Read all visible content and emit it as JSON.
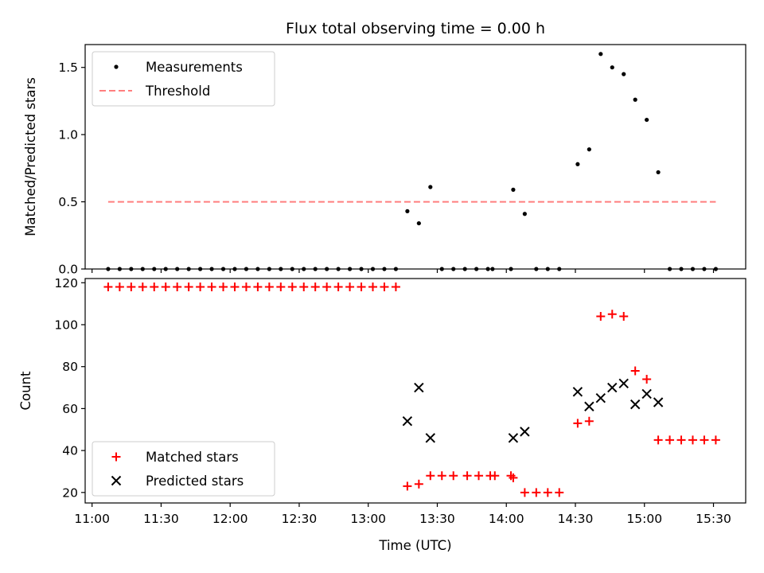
{
  "chart_data": {
    "type": "scatter",
    "title": "Flux total observing time = 0.00 h",
    "xlabel": "Time (UTC)",
    "x_tick_labels": [
      "11:00",
      "11:30",
      "12:00",
      "12:30",
      "13:00",
      "13:30",
      "14:00",
      "14:30",
      "15:00",
      "15:30"
    ],
    "xlim": [
      "10:57",
      "15:44"
    ],
    "panels": [
      {
        "id": "ratio",
        "ylabel": "Matched/Predicted stars",
        "ylim": [
          0,
          1.67
        ],
        "yticks": [
          0.0,
          0.5,
          1.0,
          1.5
        ],
        "y_tick_labels": [
          "0.0",
          "0.5",
          "1.0",
          "1.5"
        ],
        "legend_position": "upper-left",
        "series": [
          {
            "name": "Measurements",
            "marker": "dot",
            "color": "#000000",
            "points": [
              [
                "11:07",
                0
              ],
              [
                "11:12",
                0
              ],
              [
                "11:17",
                0
              ],
              [
                "11:22",
                0
              ],
              [
                "11:27",
                0
              ],
              [
                "11:32",
                0
              ],
              [
                "11:37",
                0
              ],
              [
                "11:42",
                0
              ],
              [
                "11:47",
                0
              ],
              [
                "11:52",
                0
              ],
              [
                "11:57",
                0
              ],
              [
                "12:02",
                0
              ],
              [
                "12:07",
                0
              ],
              [
                "12:12",
                0
              ],
              [
                "12:17",
                0
              ],
              [
                "12:22",
                0
              ],
              [
                "12:27",
                0
              ],
              [
                "12:32",
                0
              ],
              [
                "12:37",
                0
              ],
              [
                "12:42",
                0
              ],
              [
                "12:47",
                0
              ],
              [
                "12:52",
                0
              ],
              [
                "12:57",
                0
              ],
              [
                "13:02",
                0
              ],
              [
                "13:07",
                0
              ],
              [
                "13:12",
                0
              ],
              [
                "13:17",
                0.43
              ],
              [
                "13:22",
                0.34
              ],
              [
                "13:27",
                0.61
              ],
              [
                "13:32",
                0
              ],
              [
                "13:37",
                0
              ],
              [
                "13:42",
                0
              ],
              [
                "13:47",
                0
              ],
              [
                "13:52",
                0
              ],
              [
                "13:54",
                0
              ],
              [
                "14:02",
                0
              ],
              [
                "14:03",
                0.59
              ],
              [
                "14:08",
                0.41
              ],
              [
                "14:13",
                0
              ],
              [
                "14:18",
                0
              ],
              [
                "14:23",
                0
              ],
              [
                "14:31",
                0.78
              ],
              [
                "14:36",
                0.89
              ],
              [
                "14:41",
                1.6
              ],
              [
                "14:46",
                1.5
              ],
              [
                "14:51",
                1.45
              ],
              [
                "14:56",
                1.26
              ],
              [
                "15:01",
                1.11
              ],
              [
                "15:06",
                0.72
              ],
              [
                "15:11",
                0
              ],
              [
                "15:16",
                0
              ],
              [
                "15:21",
                0
              ],
              [
                "15:26",
                0
              ],
              [
                "15:31",
                0
              ]
            ]
          },
          {
            "name": "Threshold",
            "marker": "dashed-line",
            "color": "#ff7f7f",
            "points": [
              [
                "11:07",
                0.5
              ],
              [
                "15:31",
                0.5
              ]
            ]
          }
        ]
      },
      {
        "id": "count",
        "ylabel": "Count",
        "ylim": [
          15,
          122
        ],
        "yticks": [
          20,
          40,
          60,
          80,
          100,
          120
        ],
        "y_tick_labels": [
          "20",
          "40",
          "60",
          "80",
          "100",
          "120"
        ],
        "legend_position": "lower-left",
        "series": [
          {
            "name": "Matched stars",
            "marker": "plus",
            "color": "#ff0000",
            "points": [
              [
                "11:07",
                118
              ],
              [
                "11:12",
                118
              ],
              [
                "11:17",
                118
              ],
              [
                "11:22",
                118
              ],
              [
                "11:27",
                118
              ],
              [
                "11:32",
                118
              ],
              [
                "11:37",
                118
              ],
              [
                "11:42",
                118
              ],
              [
                "11:47",
                118
              ],
              [
                "11:52",
                118
              ],
              [
                "11:57",
                118
              ],
              [
                "12:02",
                118
              ],
              [
                "12:07",
                118
              ],
              [
                "12:12",
                118
              ],
              [
                "12:17",
                118
              ],
              [
                "12:22",
                118
              ],
              [
                "12:27",
                118
              ],
              [
                "12:32",
                118
              ],
              [
                "12:37",
                118
              ],
              [
                "12:42",
                118
              ],
              [
                "12:47",
                118
              ],
              [
                "12:52",
                118
              ],
              [
                "12:57",
                118
              ],
              [
                "13:02",
                118
              ],
              [
                "13:07",
                118
              ],
              [
                "13:12",
                118
              ],
              [
                "13:17",
                23
              ],
              [
                "13:22",
                24
              ],
              [
                "13:27",
                28
              ],
              [
                "13:32",
                28
              ],
              [
                "13:37",
                28
              ],
              [
                "13:43",
                28
              ],
              [
                "13:48",
                28
              ],
              [
                "13:53",
                28
              ],
              [
                "13:55",
                28
              ],
              [
                "14:02",
                28
              ],
              [
                "14:03",
                27
              ],
              [
                "14:08",
                20
              ],
              [
                "14:13",
                20
              ],
              [
                "14:18",
                20
              ],
              [
                "14:23",
                20
              ],
              [
                "14:31",
                53
              ],
              [
                "14:36",
                54
              ],
              [
                "14:41",
                104
              ],
              [
                "14:46",
                105
              ],
              [
                "14:51",
                104
              ],
              [
                "14:56",
                78
              ],
              [
                "15:01",
                74
              ],
              [
                "15:06",
                45
              ],
              [
                "15:11",
                45
              ],
              [
                "15:16",
                45
              ],
              [
                "15:21",
                45
              ],
              [
                "15:26",
                45
              ],
              [
                "15:31",
                45
              ]
            ]
          },
          {
            "name": "Predicted stars",
            "marker": "x",
            "color": "#000000",
            "points": [
              [
                "13:17",
                54
              ],
              [
                "13:22",
                70
              ],
              [
                "13:27",
                46
              ],
              [
                "14:03",
                46
              ],
              [
                "14:08",
                49
              ],
              [
                "14:31",
                68
              ],
              [
                "14:36",
                61
              ],
              [
                "14:41",
                65
              ],
              [
                "14:46",
                70
              ],
              [
                "14:51",
                72
              ],
              [
                "14:56",
                62
              ],
              [
                "15:01",
                67
              ],
              [
                "15:06",
                63
              ]
            ]
          }
        ]
      }
    ]
  }
}
